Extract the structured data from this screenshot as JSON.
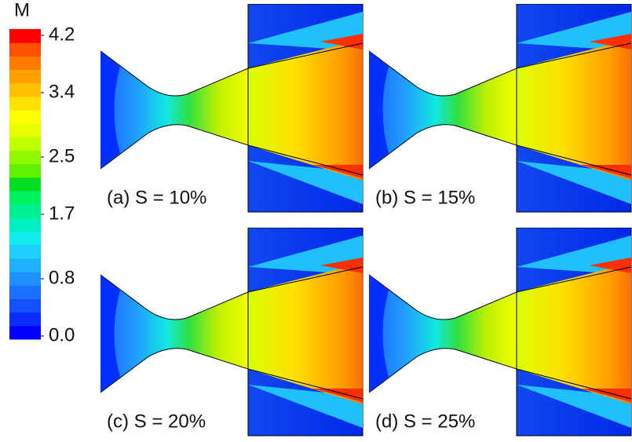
{
  "colorbar": {
    "title": "M",
    "lim": [
      0,
      4.2
    ],
    "ticks": [
      {
        "value": 0,
        "label": "0.0"
      },
      {
        "value": 0.8,
        "label": "0.8"
      },
      {
        "value": 1.7,
        "label": "1.7"
      },
      {
        "value": 2.5,
        "label": "2.5"
      },
      {
        "value": 3.4,
        "label": "3.4"
      },
      {
        "value": 4.2,
        "label": "4.2"
      }
    ],
    "colors": [
      "#0000ff",
      "#0a2cff",
      "#1450ff",
      "#1c70ff",
      "#1e90ff",
      "#20b0ff",
      "#1ed0ff",
      "#10ecf0",
      "#00f0c0",
      "#00f090",
      "#00f060",
      "#00e020",
      "#60f000",
      "#90f800",
      "#c0ff00",
      "#e8ff00",
      "#ffff00",
      "#ffe000",
      "#ffc000",
      "#ffa000",
      "#ff7a00",
      "#ff5000",
      "#ff0000"
    ]
  },
  "panels": [
    {
      "label": "(a) S = 10%"
    },
    {
      "label": "(b) S = 15%"
    },
    {
      "label": "(c) S = 20%"
    },
    {
      "label": "(d) S = 25%"
    }
  ]
}
